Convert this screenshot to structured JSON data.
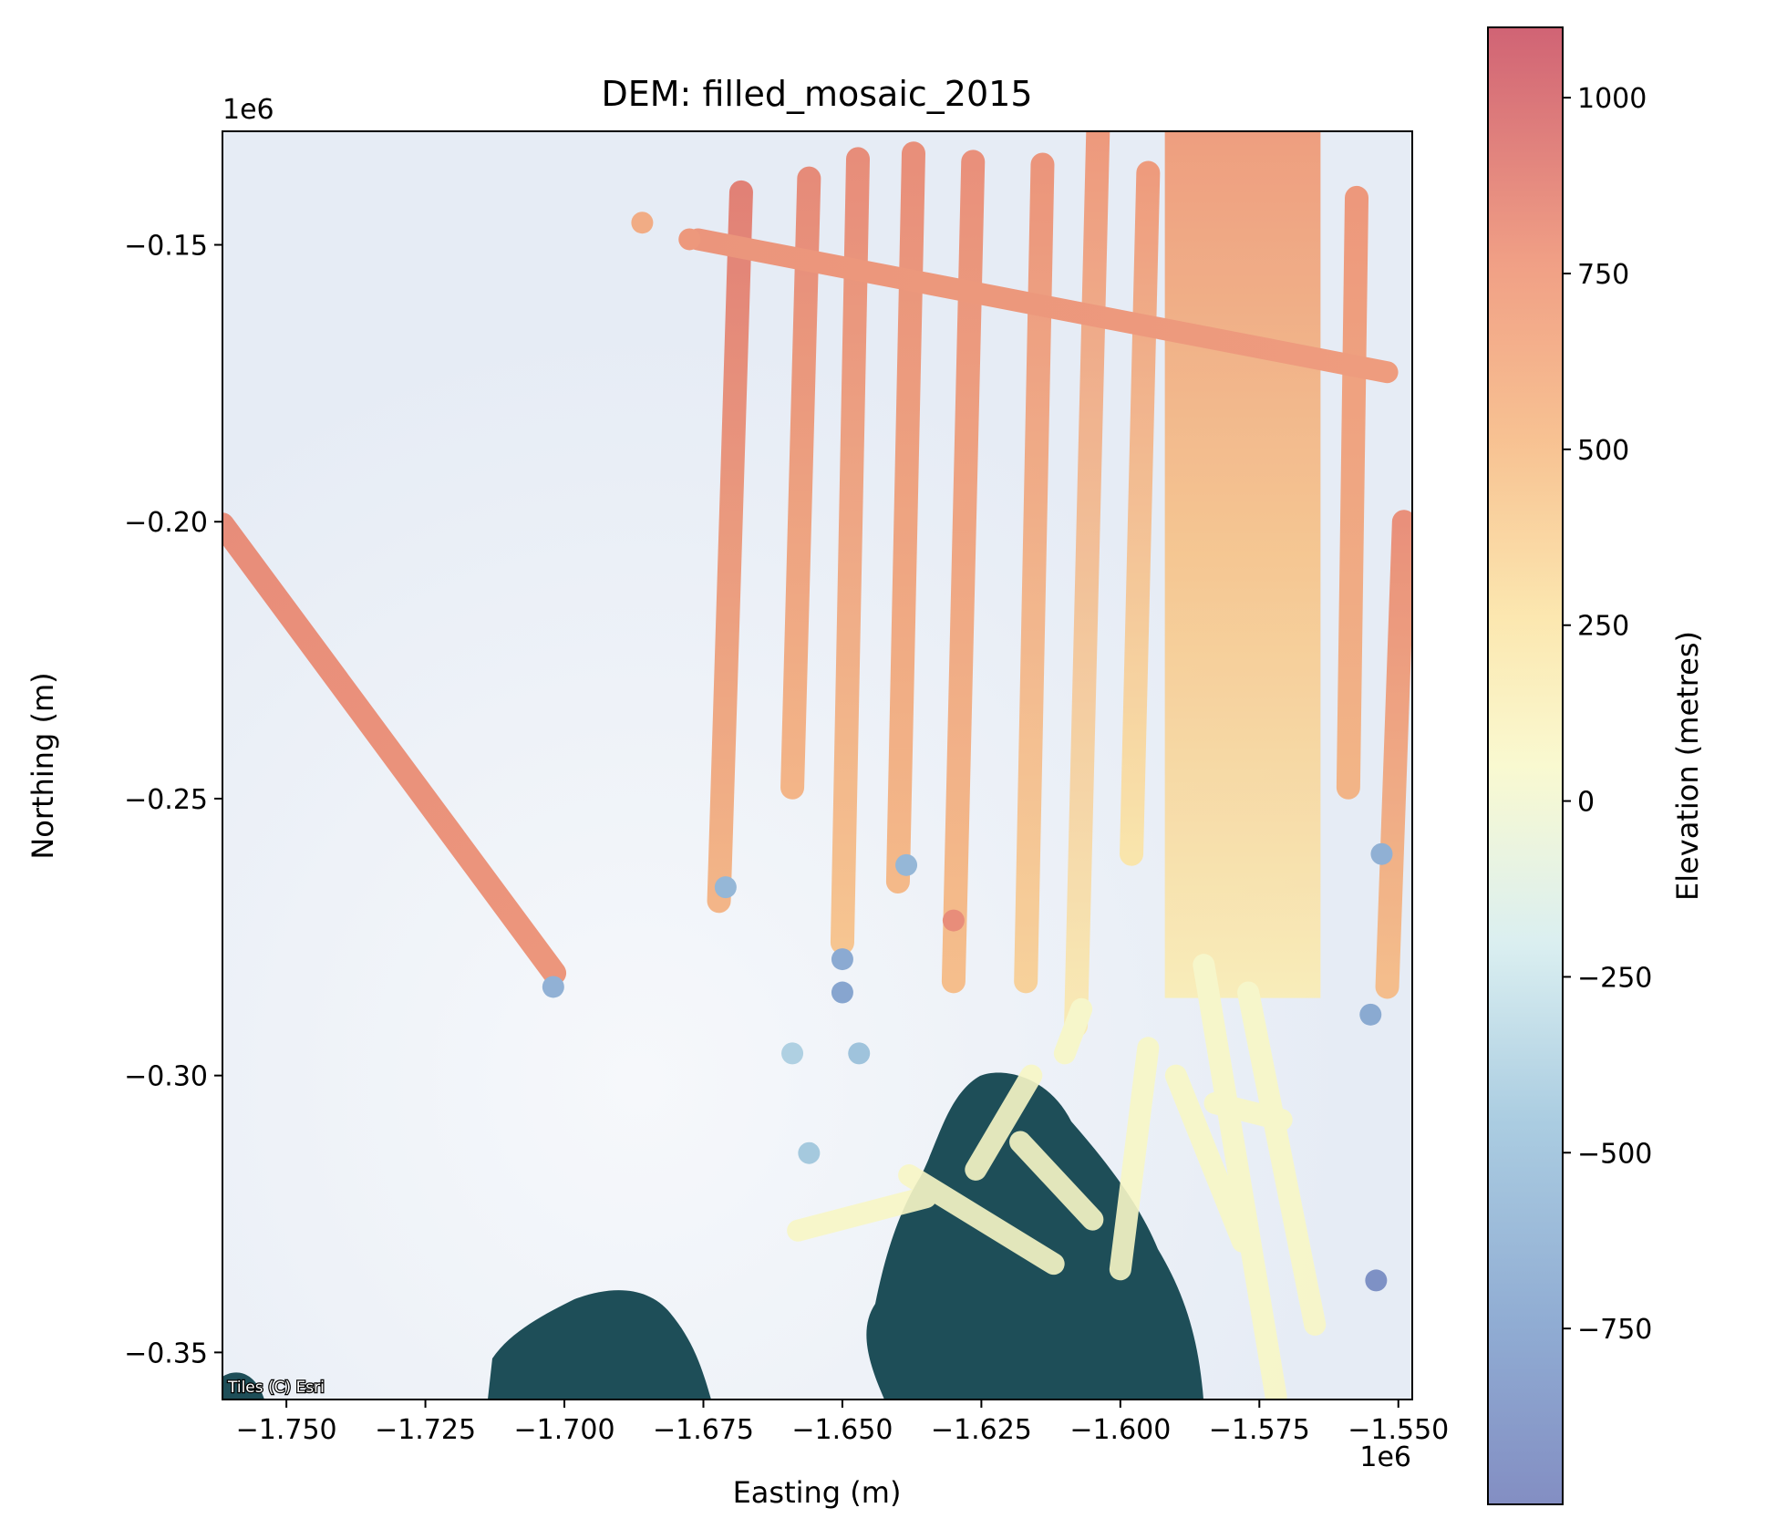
{
  "chart_data": {
    "type": "heatmap",
    "title": "DEM: filled_mosaic_2015",
    "xlabel": "Easting (m)",
    "ylabel": "Northing (m)",
    "x_offset_label": "1e6",
    "y_offset_label": "1e6",
    "xlim": [
      -1.7615,
      -1.5475
    ],
    "ylim": [
      -0.3585,
      -0.1295
    ],
    "x_ticks": [
      -1.75,
      -1.725,
      -1.7,
      -1.675,
      -1.65,
      -1.625,
      -1.6,
      -1.575,
      -1.55
    ],
    "x_tick_labels": [
      "−1.750",
      "−1.725",
      "−1.700",
      "−1.675",
      "−1.650",
      "−1.625",
      "−1.600",
      "−1.575",
      "−1.550"
    ],
    "y_ticks": [
      -0.15,
      -0.2,
      -0.25,
      -0.3,
      -0.35
    ],
    "y_tick_labels": [
      "−0.15",
      "−0.20",
      "−0.25",
      "−0.30",
      "−0.35"
    ],
    "colorbar": {
      "label": "Elevation (metres)",
      "colormap": "RdYlBu_r",
      "range": [
        -1000,
        1100
      ],
      "ticks": [
        1000,
        750,
        500,
        250,
        0,
        -250,
        -500,
        -750
      ],
      "tick_labels": [
        "1000",
        "750",
        "500",
        "250",
        "0",
        "−250",
        "−500",
        "−750"
      ]
    },
    "basemap_attribution": "Tiles (C) Esri",
    "grid": false,
    "colors": {
      "ice": "#e9eef6",
      "ocean": "#1e4e58",
      "high": "#c8485c",
      "upper": "#ee8f70",
      "mid": "#fbd28c",
      "low": "#f8f8c8",
      "negative": "#9cc4dc",
      "deep": "#6d7ab8"
    },
    "tracks": [
      {
        "x1": -1.7615,
        "y1": -0.2005,
        "x2": -1.7018,
        "y2": -0.2815,
        "v1": 820,
        "v2": 780
      },
      {
        "x1": -1.6682,
        "y1": -0.1405,
        "x2": -1.6722,
        "y2": -0.2685,
        "v1": 880,
        "v2": 560
      },
      {
        "x1": -1.656,
        "y1": -0.138,
        "x2": -1.659,
        "y2": -0.248,
        "v1": 830,
        "v2": 560
      },
      {
        "x1": -1.6472,
        "y1": -0.1345,
        "x2": -1.65,
        "y2": -0.276,
        "v1": 820,
        "v2": 460
      },
      {
        "x1": -1.6372,
        "y1": -0.1335,
        "x2": -1.64,
        "y2": -0.265,
        "v1": 810,
        "v2": 540
      },
      {
        "x1": -1.6265,
        "y1": -0.135,
        "x2": -1.63,
        "y2": -0.283,
        "v1": 800,
        "v2": 500
      },
      {
        "x1": -1.614,
        "y1": -0.1355,
        "x2": -1.617,
        "y2": -0.283,
        "v1": 780,
        "v2": 380
      },
      {
        "x1": -1.604,
        "y1": -0.1285,
        "x2": -1.608,
        "y2": -0.291,
        "v1": 760,
        "v2": 190
      },
      {
        "x1": -1.595,
        "y1": -0.137,
        "x2": -1.598,
        "y2": -0.26,
        "v1": 740,
        "v2": 250
      },
      {
        "x1": -1.5575,
        "y1": -0.1415,
        "x2": -1.559,
        "y2": -0.248,
        "v1": 760,
        "v2": 560
      },
      {
        "x1": -1.549,
        "y1": -0.2,
        "x2": -1.552,
        "y2": -0.284,
        "v1": 800,
        "v2": 500
      },
      {
        "x1": -1.676,
        "y1": -0.149,
        "x2": -1.552,
        "y2": -0.173,
        "v1": 780,
        "v2": 730
      }
    ],
    "swath": {
      "x_left": -1.592,
      "x_right": -1.564,
      "y_top": -0.1295,
      "y_bottom": -0.286,
      "v_top": 720,
      "v_bottom": 160
    }
  }
}
